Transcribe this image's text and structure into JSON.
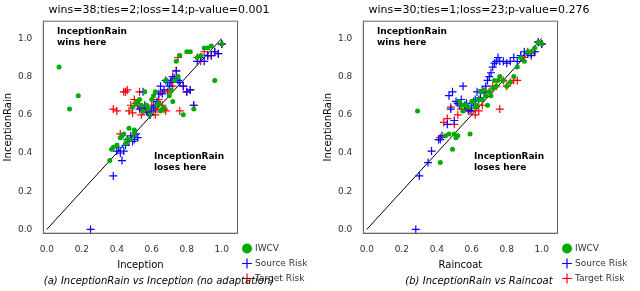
{
  "chart_data": [
    {
      "type": "scatter",
      "title": "wins=38;ties=2;loss=14;p-value=0.001",
      "subtitle": "(a) InceptionRain vs Inception (no adaptation)",
      "x_label": "Inception",
      "y_label": "InceptionRain",
      "annotations": [
        "InceptionRain\nwins here",
        "InceptionRain\nloses here"
      ],
      "xlim": [
        -0.02,
        1.09
      ],
      "ylim": [
        -0.02,
        1.09
      ],
      "xticks": [
        {
          "value": 0,
          "label": "0.0"
        },
        0.2,
        0.4,
        0.6,
        0.8,
        {
          "value": 1,
          "label": "1.0"
        }
      ],
      "yticks": [
        {
          "value": 0,
          "label": "0.0"
        },
        0.2,
        0.4,
        0.6,
        0.8,
        {
          "value": 1,
          "label": "1.0"
        }
      ],
      "grid": false,
      "legend": "lower right",
      "series": [
        {
          "type": "line",
          "color": "#000000",
          "line_style": "solid",
          "x": [
            0,
            1.0
          ],
          "values": [
            0,
            1.0
          ]
        },
        {
          "name": "IWCV",
          "color": "#00aa00",
          "marker": "circle",
          "x": [
            0.07,
            0.13,
            0.18,
            0.36,
            0.37,
            0.38,
            0.4,
            0.42,
            0.43,
            0.44,
            0.45,
            0.46,
            0.47,
            0.48,
            0.49,
            0.5,
            0.5,
            0.51,
            0.52,
            0.53,
            0.54,
            0.55,
            0.56,
            0.57,
            0.58,
            0.59,
            0.6,
            0.61,
            0.62,
            0.63,
            0.64,
            0.65,
            0.66,
            0.67,
            0.68,
            0.7,
            0.71,
            0.72,
            0.73,
            0.74,
            0.75,
            0.76,
            0.78,
            0.8,
            0.82,
            0.84,
            0.86,
            0.88,
            0.9,
            0.92,
            0.94,
            0.96,
            1.0
          ],
          "values": [
            0.85,
            0.63,
            0.7,
            0.36,
            0.42,
            0.43,
            0.44,
            0.48,
            0.49,
            0.5,
            0.45,
            0.47,
            0.53,
            0.47,
            0.64,
            0.5,
            0.52,
            0.66,
            0.67,
            0.68,
            0.65,
            0.62,
            0.72,
            0.65,
            0.63,
            0.6,
            0.68,
            0.7,
            0.72,
            0.65,
            0.66,
            0.62,
            0.63,
            0.64,
            0.78,
            0.7,
            0.73,
            0.67,
            0.78,
            0.88,
            0.8,
            0.91,
            0.6,
            0.93,
            0.93,
            0.63,
            0.9,
            0.91,
            0.95,
            0.95,
            0.96,
            0.78,
            0.97
          ]
        },
        {
          "name": "Source Risk",
          "color": "#0000ff",
          "marker": "plus",
          "x": [
            0.25,
            0.38,
            0.4,
            0.41,
            0.42,
            0.43,
            0.44,
            0.45,
            0.46,
            0.47,
            0.48,
            0.49,
            0.5,
            0.51,
            0.52,
            0.53,
            0.54,
            0.55,
            0.56,
            0.57,
            0.58,
            0.59,
            0.6,
            0.61,
            0.62,
            0.63,
            0.64,
            0.65,
            0.66,
            0.67,
            0.68,
            0.69,
            0.7,
            0.71,
            0.72,
            0.73,
            0.74,
            0.75,
            0.76,
            0.78,
            0.8,
            0.82,
            0.84,
            0.86,
            0.88,
            0.9,
            0.92,
            0.94,
            0.96,
            0.98,
            1.0
          ],
          "values": [
            0.0,
            0.28,
            0.41,
            0.43,
            0.4,
            0.36,
            0.41,
            0.44,
            0.47,
            0.46,
            0.49,
            0.46,
            0.47,
            0.5,
            0.48,
            0.63,
            0.64,
            0.72,
            0.65,
            0.63,
            0.61,
            0.6,
            0.62,
            0.64,
            0.65,
            0.67,
            0.71,
            0.75,
            0.71,
            0.73,
            0.78,
            0.77,
            0.75,
            0.77,
            0.8,
            0.79,
            0.83,
            0.78,
            0.77,
            0.75,
            0.72,
            0.73,
            0.65,
            0.88,
            0.9,
            0.88,
            0.91,
            0.91,
            0.93,
            0.92,
            0.97
          ]
        },
        {
          "name": "Target Risk",
          "color": "#ff0000",
          "marker": "plus",
          "x": [
            0.38,
            0.4,
            0.42,
            0.44,
            0.45,
            0.46,
            0.47,
            0.48,
            0.49,
            0.5,
            0.51,
            0.52,
            0.53,
            0.54,
            0.55,
            0.56,
            0.57,
            0.58,
            0.59,
            0.6,
            0.61,
            0.62,
            0.63,
            0.64,
            0.65,
            0.66,
            0.67,
            0.68,
            0.69,
            0.7,
            0.71,
            0.72,
            0.73,
            0.74,
            0.75,
            0.76,
            0.78,
            0.8,
            0.82,
            0.84,
            0.86,
            0.88,
            0.9,
            0.92,
            0.94,
            0.96,
            0.98,
            1.0
          ],
          "values": [
            0.63,
            0.62,
            0.5,
            0.72,
            0.72,
            0.73,
            0.62,
            0.65,
            0.61,
            0.68,
            0.66,
            0.65,
            0.72,
            0.6,
            0.62,
            0.63,
            0.62,
            0.63,
            0.6,
            0.65,
            0.68,
            0.6,
            0.63,
            0.68,
            0.72,
            0.65,
            0.63,
            0.62,
            0.72,
            0.73,
            0.78,
            0.75,
            0.79,
            0.83,
            0.9,
            0.62,
            0.75,
            0.72,
            0.73,
            0.65,
            0.9,
            0.88,
            0.93,
            0.91,
            0.91,
            0.93,
            0.92,
            0.97
          ]
        }
      ]
    },
    {
      "type": "scatter",
      "title": "wins=30;ties=1;loss=23;p-value=0.276",
      "subtitle": "(b) InceptionRain vs Raincoat",
      "x_label": "Raincoat",
      "y_label": "InceptionRain",
      "annotations": [
        "InceptionRain\nwins here",
        "InceptionRain\nloses here"
      ],
      "xlim": [
        -0.02,
        1.09
      ],
      "ylim": [
        -0.02,
        1.09
      ],
      "xticks": [
        {
          "value": 0,
          "label": "0.0"
        },
        0.2,
        0.4,
        0.6,
        0.8,
        {
          "value": 1,
          "label": "1.0"
        }
      ],
      "yticks": [
        {
          "value": 0,
          "label": "0.0"
        },
        0.2,
        0.4,
        0.6,
        0.8,
        {
          "value": 1,
          "label": "1.0"
        }
      ],
      "grid": false,
      "legend": "lower right",
      "series": [
        {
          "type": "line",
          "color": "#000000",
          "line_style": "solid",
          "x": [
            0,
            1.0
          ],
          "values": [
            0,
            1.0
          ]
        },
        {
          "name": "IWCV",
          "color": "#00aa00",
          "marker": "circle",
          "x": [
            0.29,
            0.42,
            0.45,
            0.47,
            0.49,
            0.5,
            0.51,
            0.52,
            0.53,
            0.54,
            0.55,
            0.56,
            0.57,
            0.58,
            0.59,
            0.6,
            0.61,
            0.62,
            0.63,
            0.64,
            0.65,
            0.66,
            0.67,
            0.68,
            0.69,
            0.7,
            0.71,
            0.72,
            0.73,
            0.74,
            0.75,
            0.76,
            0.78,
            0.8,
            0.82,
            0.84,
            0.86,
            0.88,
            0.9,
            0.92,
            0.94,
            0.96,
            0.98,
            1.0
          ],
          "values": [
            0.62,
            0.35,
            0.49,
            0.5,
            0.42,
            0.5,
            0.48,
            0.49,
            0.67,
            0.65,
            0.62,
            0.65,
            0.65,
            0.64,
            0.5,
            0.67,
            0.67,
            0.64,
            0.65,
            0.68,
            0.72,
            0.68,
            0.73,
            0.7,
            0.65,
            0.72,
            0.7,
            0.74,
            0.78,
            0.75,
            0.78,
            0.8,
            0.78,
            0.75,
            0.77,
            0.8,
            0.85,
            0.9,
            0.88,
            0.93,
            0.93,
            0.95,
            0.98,
            0.97
          ]
        },
        {
          "name": "Source Risk",
          "color": "#0000ff",
          "marker": "plus",
          "x": [
            0.28,
            0.3,
            0.35,
            0.37,
            0.41,
            0.42,
            0.43,
            0.46,
            0.47,
            0.48,
            0.49,
            0.5,
            0.51,
            0.52,
            0.53,
            0.54,
            0.55,
            0.56,
            0.57,
            0.58,
            0.59,
            0.6,
            0.61,
            0.62,
            0.63,
            0.64,
            0.65,
            0.66,
            0.67,
            0.68,
            0.69,
            0.7,
            0.71,
            0.72,
            0.73,
            0.74,
            0.75,
            0.76,
            0.78,
            0.8,
            0.82,
            0.84,
            0.86,
            0.88,
            0.9,
            0.92,
            0.94,
            0.96,
            0.98,
            1.0
          ],
          "values": [
            0.0,
            0.28,
            0.35,
            0.41,
            0.47,
            0.47,
            0.49,
            0.55,
            0.7,
            0.63,
            0.72,
            0.57,
            0.67,
            0.66,
            0.65,
            0.68,
            0.75,
            0.65,
            0.66,
            0.63,
            0.62,
            0.65,
            0.67,
            0.68,
            0.72,
            0.68,
            0.69,
            0.73,
            0.72,
            0.75,
            0.78,
            0.8,
            0.82,
            0.85,
            0.87,
            0.88,
            0.9,
            0.88,
            0.88,
            0.87,
            0.88,
            0.9,
            0.88,
            0.91,
            0.93,
            0.92,
            0.91,
            0.93,
            0.98,
            0.97
          ]
        },
        {
          "name": "Target Risk",
          "color": "#ff0000",
          "marker": "plus",
          "x": [
            0.42,
            0.44,
            0.46,
            0.48,
            0.5,
            0.52,
            0.54,
            0.56,
            0.58,
            0.6,
            0.62,
            0.64,
            0.66,
            0.68,
            0.7,
            0.72,
            0.74,
            0.76,
            0.78,
            0.8,
            0.82,
            0.84,
            0.86,
            0.88,
            0.9,
            0.92,
            0.94,
            0.96,
            0.98,
            1.0
          ],
          "values": [
            0.48,
            0.56,
            0.58,
            0.64,
            0.55,
            0.6,
            0.63,
            0.63,
            0.62,
            0.62,
            0.6,
            0.62,
            0.65,
            0.72,
            0.72,
            0.75,
            0.75,
            0.63,
            0.78,
            0.75,
            0.77,
            0.78,
            0.78,
            0.9,
            0.9,
            0.93,
            0.92,
            0.93,
            0.98,
            0.97
          ]
        }
      ]
    }
  ]
}
